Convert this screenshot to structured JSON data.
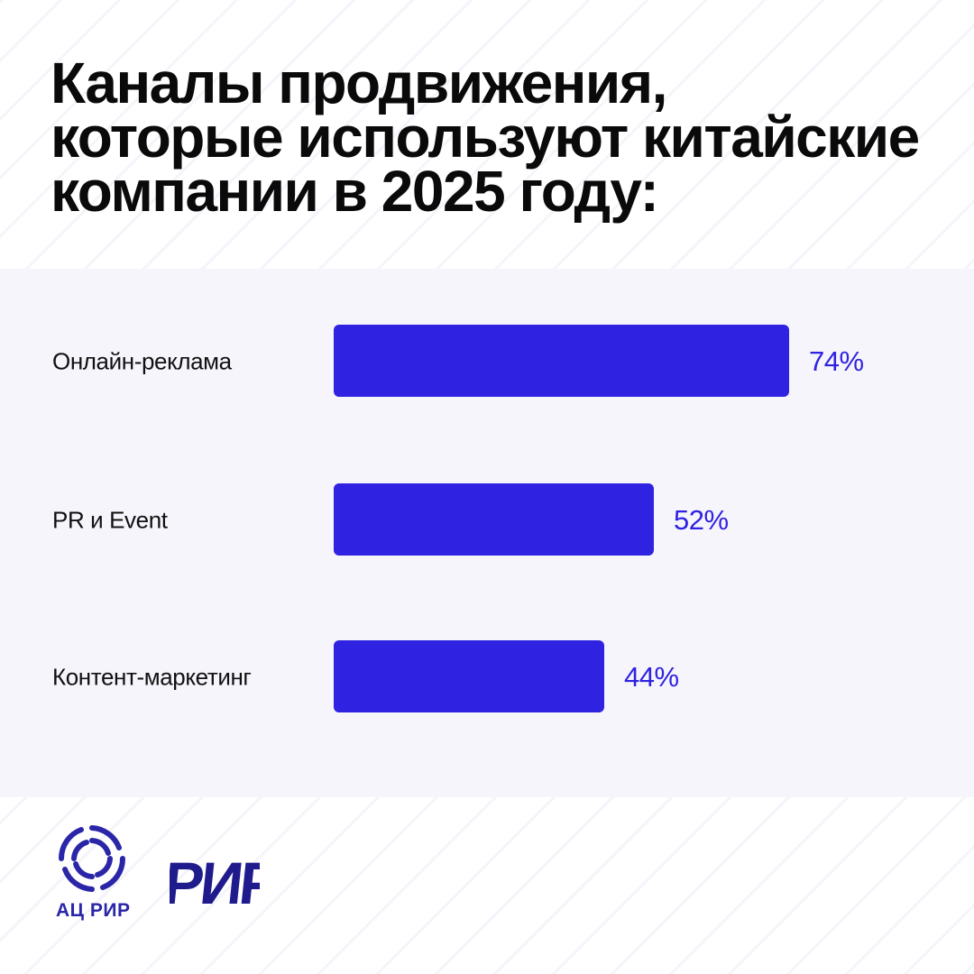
{
  "title_lines": [
    "Каналы продвижения,",
    "которые используют китайские",
    "компании в 2025 году:"
  ],
  "chart_data": {
    "type": "bar",
    "orientation": "horizontal",
    "categories": [
      "Онлайн-реклама",
      "PR и Event",
      "Контент-маркетинг"
    ],
    "values": [
      74,
      52,
      44
    ],
    "value_labels": [
      "74%",
      "52%",
      "44%"
    ],
    "unit": "%",
    "xlim": [
      0,
      100
    ],
    "grid": false,
    "legend": "none",
    "bar_color": "#2f22e0"
  },
  "footer": {
    "logo_caption": "АЦ РИР",
    "brand_logo_text": "РИР",
    "brand_color": "#2b26a8",
    "icons": [
      "acrir-logo-icon",
      "rir-logo-icon"
    ]
  }
}
